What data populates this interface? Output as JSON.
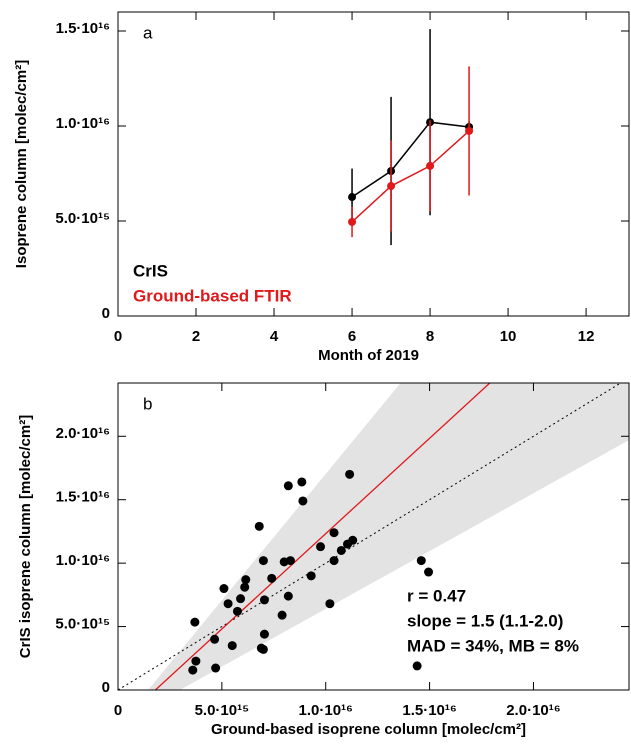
{
  "chart_data": [
    {
      "type": "line",
      "panel_label": "a",
      "x_label": "Month of 2019",
      "y_label": "Isoprene column [molec/cm²]",
      "x": [
        6,
        7,
        8,
        9
      ],
      "series": [
        {
          "name": "CrIS",
          "color": "#000000",
          "values": [
            6260000000000000.0,
            7630000000000000.0,
            1.02e+16,
            9950000000000000.0
          ],
          "errors": [
            1500000000000000.0,
            3900000000000000.0,
            4900000000000000.0,
            300000000000000.0
          ]
        },
        {
          "name": "Ground-based FTIR",
          "color": "#e0191b",
          "values": [
            4950000000000000.0,
            6840000000000000.0,
            7900000000000000.0,
            9740000000000000.0
          ],
          "errors": [
            800000000000000.0,
            2400000000000000.0,
            2400000000000000.0,
            3400000000000000.0
          ]
        }
      ],
      "xlim": [
        0,
        13.1
      ],
      "xticks": [
        0,
        2,
        4,
        6,
        8,
        10,
        12
      ],
      "ylim": [
        0,
        1.6e+16
      ],
      "yticks": [
        0,
        {
          "value": 5000000000000000.0,
          "label": "5.0·10¹⁵"
        },
        {
          "value": 1e+16,
          "label": "1.0·10¹⁶"
        },
        {
          "value": 1.5e+16,
          "label": "1.5·10¹⁶"
        }
      ]
    },
    {
      "type": "scatter",
      "panel_label": "b",
      "x_label": "Ground-based isoprene column [molec/cm²]",
      "y_label": "CrIS isoprene column [molec/cm²]",
      "color": "#000000",
      "x": [
        3700000000000000.0,
        3750000000000000.0,
        3600000000000000.0,
        4700000000000000.0,
        4650000000000000.0,
        5100000000000000.0,
        5300000000000000.0,
        5500000000000000.0,
        5750000000000000.0,
        5900000000000000.0,
        6150000000000000.0,
        6100000000000000.0,
        6800000000000000.0,
        7000000000000000.0,
        7050000000000000.0,
        7050000000000000.0,
        6900000000000000.0,
        7000000000000000.0,
        7400000000000000.0,
        7900000000000000.0,
        8000000000000000.0,
        8200000000000000.0,
        8200000000000000.0,
        8300000000000000.0,
        8850000000000000.0,
        8900000000000000.0,
        9300000000000000.0,
        9750000000000000.0,
        1.02e+16,
        1.04e+16,
        1.04e+16,
        1.075e+16,
        1.105e+16,
        1.13e+16,
        1.115e+16,
        1.46e+16,
        1.495e+16,
        1.44e+16
      ],
      "y": [
        5350000000000000.0,
        2280000000000000.0,
        1570000000000000.0,
        1730000000000000.0,
        4000000000000000.0,
        8000000000000000.0,
        6800000000000000.0,
        3500000000000000.0,
        6200000000000000.0,
        7200000000000000.0,
        8700000000000000.0,
        8100000000000000.0,
        1.29e+16,
        1.02e+16,
        7100000000000000.0,
        4400000000000000.0,
        3300000000000000.0,
        3200000000000000.0,
        8800000000000000.0,
        5900000000000000.0,
        1.01e+16,
        1.61e+16,
        7400000000000000.0,
        1.02e+16,
        1.64e+16,
        1.49e+16,
        9000000000000000.0,
        1.13e+16,
        6800000000000000.0,
        1.24e+16,
        1.02e+16,
        1.1e+16,
        1.15e+16,
        1.18e+16,
        1.7e+16,
        1.02e+16,
        9300000000000000.0,
        1900000000000000.0
      ],
      "fit_line": {
        "color": "#e0191b",
        "x": [
          1800000000000000.0,
          1.79e+16
        ],
        "y": [
          0,
          2.42e+16
        ]
      },
      "band": {
        "color": "#e3e3e3",
        "upper_x": [
          1450000000000000.0,
          1.36e+16
        ],
        "upper_y": [
          0,
          2.42e+16
        ],
        "lower_x": [
          2980000000000000.0,
          2.46e+16
        ],
        "lower_y": [
          0,
          1.97e+16
        ]
      },
      "annotations": [
        "r = 0.47",
        "slope = 1.5 (1.1-2.0)",
        "MAD = 34%, MB = 8%"
      ],
      "xlim": [
        0,
        2.46e+16
      ],
      "xticks": [
        0,
        {
          "value": 5000000000000000.0,
          "label": "5.0·10¹⁵"
        },
        {
          "value": 1e+16,
          "label": "1.0·10¹⁶"
        },
        {
          "value": 1.5e+16,
          "label": "1.5·10¹⁶"
        },
        {
          "value": 2e+16,
          "label": "2.0·10¹⁶"
        }
      ],
      "ylim": [
        0,
        2.42e+16
      ],
      "yticks": [
        0,
        {
          "value": 5000000000000000.0,
          "label": "5.0·10¹⁵"
        },
        {
          "value": 1e+16,
          "label": "1.0·10¹⁶"
        },
        {
          "value": 1.5e+16,
          "label": "1.5·10¹⁶"
        },
        {
          "value": 2e+16,
          "label": "2.0·10¹⁶"
        }
      ]
    }
  ]
}
